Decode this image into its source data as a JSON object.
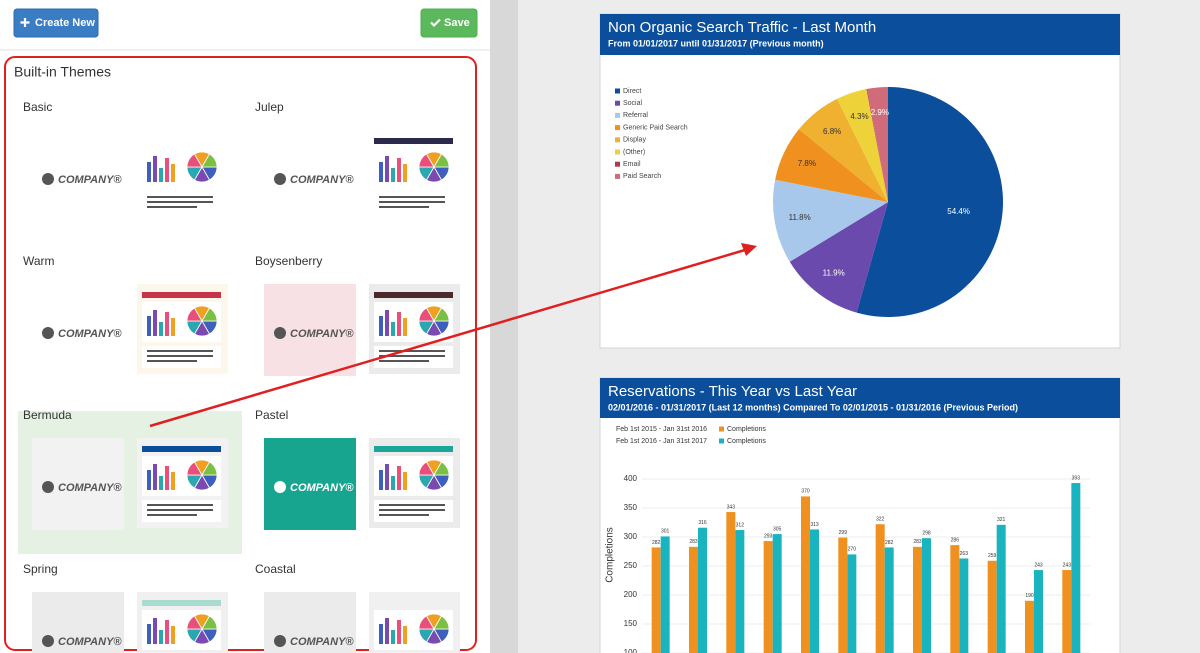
{
  "toolbar": {
    "create_label": "Create New",
    "save_label": "Save"
  },
  "themes": {
    "title": "Built-in Themes",
    "logo_text": "COMPANY®",
    "items": [
      {
        "name": "Basic",
        "accent": null,
        "thumb_bg": "#ffffff",
        "logo_bg": "#ffffff",
        "logo_color": "#555555",
        "selected": false
      },
      {
        "name": "Julep",
        "accent": "#2c2a4a",
        "thumb_bg": "#ffffff",
        "logo_bg": "#ffffff",
        "logo_color": "#555555",
        "selected": false
      },
      {
        "name": "Warm",
        "accent": "#c8334a",
        "thumb_bg": "#fdf6ea",
        "logo_bg": "#ffffff",
        "logo_color": "#555555",
        "selected": false
      },
      {
        "name": "Boysenberry",
        "accent": "#4a2a2a",
        "thumb_bg": "#ebebeb",
        "logo_bg": "#f8e1e5",
        "logo_color": "#555555",
        "selected": false
      },
      {
        "name": "Bermuda",
        "accent": "#0b4f9c",
        "thumb_bg": "#f2f2f2",
        "logo_bg": "#f2f2f2",
        "logo_color": "#555555",
        "selected": true
      },
      {
        "name": "Pastel",
        "accent": "#1aa79a",
        "thumb_bg": "#ebebeb",
        "logo_bg": "#17a58f",
        "logo_color": "#ffffff",
        "selected": false
      },
      {
        "name": "Spring",
        "accent": "#a8dcd0",
        "thumb_bg": "#f0f0f0",
        "logo_bg": "#ebebeb",
        "logo_color": "#555555",
        "selected": false
      },
      {
        "name": "Coastal",
        "accent": null,
        "thumb_bg": "#f0f0f0",
        "logo_bg": "#ebebeb",
        "logo_color": "#555555",
        "selected": false
      }
    ]
  },
  "chart_data": [
    {
      "type": "pie",
      "title": "Non Organic Search Traffic - Last Month",
      "subtitle": "From 01/01/2017 until 01/31/2017 (Previous month)",
      "categories": [
        "Direct",
        "Social",
        "Referral",
        "Generic Paid Search",
        "Display",
        "(Other)",
        "Email",
        "Paid Search"
      ],
      "values": [
        54.4,
        11.9,
        11.8,
        7.8,
        6.8,
        4.3,
        0.1,
        2.9
      ],
      "value_labels": [
        "54.4%",
        "11.9%",
        "11.8%",
        "7.8%",
        "6.8%",
        "4.3%",
        null,
        "2.9%"
      ],
      "colors": [
        "#0b4f9c",
        "#6a4aad",
        "#a7c8ea",
        "#f0901e",
        "#f0b030",
        "#eed23a",
        "#b03a48",
        "#d06b7a"
      ],
      "legend": "top-left"
    },
    {
      "type": "bar",
      "title": "Reservations - This Year vs Last Year",
      "subtitle": "02/01/2016 - 01/31/2017 (Last 12 months) Compared To 02/01/2015 - 01/31/2016 (Previous Period)",
      "y_label": "Completions",
      "categories": [
        null,
        null,
        null,
        null,
        null,
        null,
        null,
        null,
        null,
        null,
        null,
        null
      ],
      "series": [
        {
          "name": "Completions",
          "period": "Feb 1st 2015 - Jan 31st 2016",
          "color": "#f0901e",
          "values": [
            282,
            283,
            343,
            293,
            370,
            299,
            322,
            283,
            286,
            259,
            190,
            243
          ]
        },
        {
          "name": "Completions",
          "period": "Feb 1st 2016 - Jan 31st 2017",
          "color": "#1ab3c0",
          "values": [
            301,
            316,
            312,
            305,
            313,
            270,
            282,
            298,
            263,
            321,
            243,
            393
          ]
        }
      ],
      "ylim": [
        100,
        410
      ],
      "yticks": [
        100,
        150,
        200,
        250,
        300,
        350,
        400
      ],
      "grid": true
    }
  ]
}
